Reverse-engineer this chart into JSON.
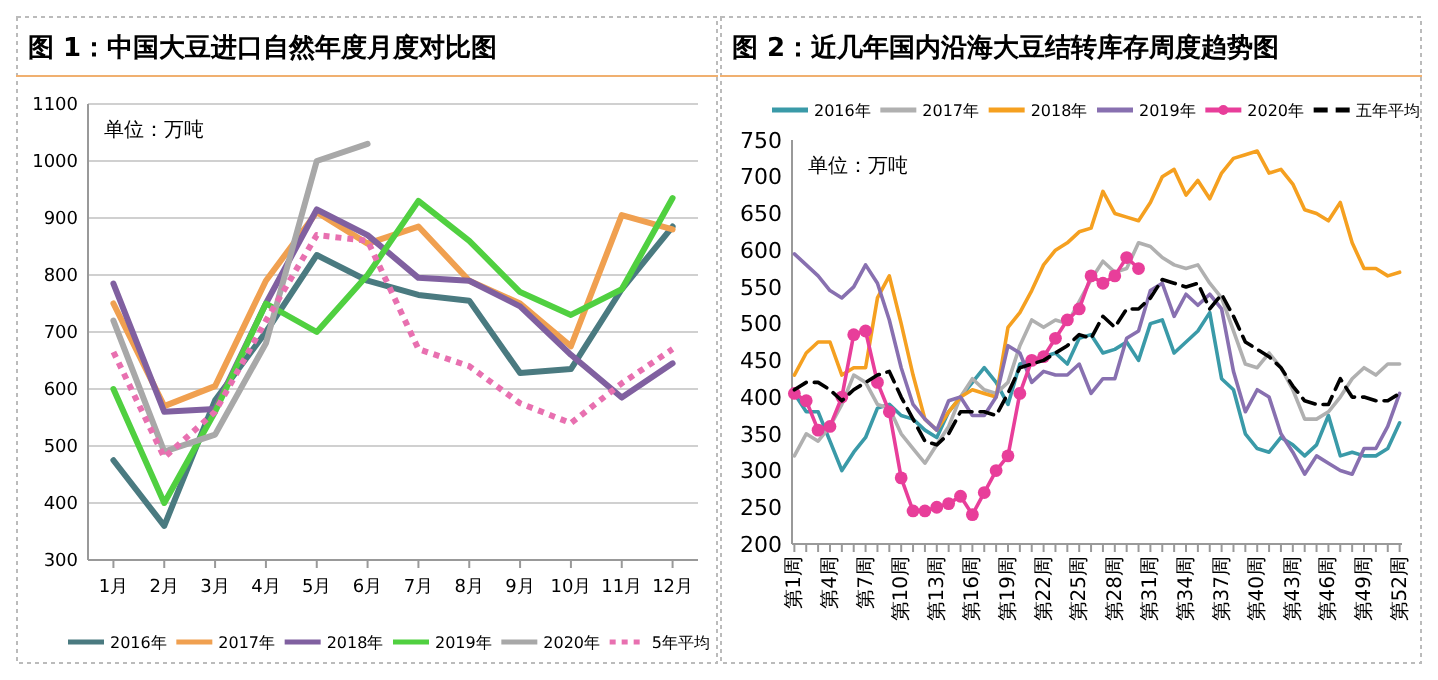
{
  "chart_data": [
    {
      "type": "line",
      "title": "图 1：中国大豆进口自然年度月度对比图",
      "categories": [
        "1月",
        "2月",
        "3月",
        "4月",
        "5月",
        "6月",
        "7月",
        "8月",
        "9月",
        "10月",
        "11月",
        "12月"
      ],
      "ylim": [
        300,
        1100
      ],
      "yticks": [
        300,
        400,
        500,
        600,
        700,
        800,
        900,
        1000,
        1100
      ],
      "grid": "y",
      "legend": "bottom",
      "marker": "none",
      "annotations": [
        "单位：万吨"
      ],
      "series": [
        {
          "name": "2016年",
          "color": "#4a7a80",
          "values": [
            475,
            360,
            580,
            700,
            835,
            790,
            765,
            755,
            628,
            635,
            775,
            885
          ]
        },
        {
          "name": "2017年",
          "color": "#f0a050",
          "values": [
            750,
            570,
            605,
            790,
            910,
            855,
            885,
            790,
            750,
            675,
            905,
            880
          ]
        },
        {
          "name": "2018年",
          "color": "#8060a0",
          "values": [
            785,
            560,
            565,
            750,
            915,
            870,
            795,
            790,
            745,
            660,
            585,
            645
          ]
        },
        {
          "name": "2019年",
          "color": "#50d040",
          "values": [
            600,
            400,
            560,
            750,
            700,
            800,
            930,
            860,
            770,
            730,
            775,
            935
          ]
        },
        {
          "name": "2020年",
          "color": "#a8a8a8",
          "values": [
            720,
            490,
            520,
            680,
            1000,
            1030,
            null,
            null,
            null,
            null,
            null,
            null
          ]
        },
        {
          "name": "5年平均",
          "color": "#e870b0",
          "line_style": "dotted",
          "values": [
            665,
            480,
            560,
            720,
            870,
            860,
            670,
            640,
            575,
            540,
            610,
            670
          ]
        }
      ]
    },
    {
      "type": "line",
      "title": "图 2：近几年国内沿海大豆结转库存周度趋势图",
      "categories": [
        "第1周",
        null,
        null,
        "第4周",
        null,
        null,
        "第7周",
        null,
        null,
        "第10周",
        null,
        null,
        "第13周",
        null,
        null,
        "第16周",
        null,
        null,
        "第19周",
        null,
        null,
        "第22周",
        null,
        null,
        "第25周",
        null,
        null,
        "第28周",
        null,
        null,
        "第31周",
        null,
        null,
        "第34周",
        null,
        null,
        "第37周",
        null,
        null,
        "第40周",
        null,
        null,
        "第43周",
        null,
        null,
        "第46周",
        null,
        null,
        "第49周",
        null,
        null,
        "第52周"
      ],
      "ylim": [
        200,
        750
      ],
      "yticks": [
        200,
        250,
        300,
        350,
        400,
        450,
        500,
        550,
        600,
        650,
        700,
        750
      ],
      "grid": false,
      "legend": "top",
      "annotations": [
        "单位：万吨"
      ],
      "series": [
        {
          "name": "2016年",
          "color": "#3a9aa8",
          "values": [
            405,
            380,
            380,
            340,
            300,
            325,
            345,
            385,
            390,
            375,
            370,
            355,
            345,
            380,
            400,
            420,
            440,
            420,
            390,
            445,
            450,
            455,
            460,
            445,
            480,
            485,
            460,
            465,
            475,
            450,
            500,
            505,
            460,
            475,
            490,
            515,
            425,
            410,
            350,
            330,
            325,
            345,
            335,
            320,
            335,
            375,
            320,
            325,
            320,
            320,
            330,
            365
          ]
        },
        {
          "name": "2017年",
          "color": "#b0b0b0",
          "values": [
            320,
            350,
            340,
            360,
            390,
            430,
            420,
            390,
            385,
            350,
            330,
            310,
            335,
            360,
            400,
            425,
            410,
            405,
            420,
            470,
            505,
            495,
            505,
            500,
            530,
            560,
            585,
            570,
            575,
            610,
            605,
            590,
            580,
            575,
            580,
            555,
            535,
            490,
            445,
            440,
            460,
            440,
            410,
            370,
            370,
            380,
            400,
            425,
            440,
            430,
            445,
            445
          ]
        },
        {
          "name": "2018年",
          "color": "#f5a020",
          "values": [
            430,
            460,
            475,
            475,
            430,
            440,
            440,
            535,
            565,
            500,
            430,
            370,
            355,
            380,
            400,
            410,
            405,
            400,
            495,
            515,
            545,
            580,
            600,
            610,
            625,
            630,
            680,
            650,
            645,
            640,
            665,
            700,
            710,
            675,
            695,
            670,
            705,
            725,
            730,
            735,
            705,
            710,
            690,
            655,
            650,
            640,
            665,
            610,
            575,
            575,
            565,
            570
          ]
        },
        {
          "name": "2019年",
          "color": "#8870b0",
          "values": [
            595,
            580,
            565,
            545,
            535,
            550,
            580,
            555,
            505,
            440,
            390,
            370,
            355,
            395,
            400,
            375,
            375,
            400,
            470,
            460,
            420,
            435,
            430,
            430,
            445,
            405,
            425,
            425,
            480,
            490,
            545,
            555,
            510,
            540,
            525,
            540,
            520,
            435,
            380,
            410,
            400,
            350,
            325,
            295,
            320,
            310,
            300,
            295,
            330,
            330,
            360,
            405
          ]
        },
        {
          "name": "2020年",
          "color": "#e83e9a",
          "marker": "circle",
          "values": [
            405,
            395,
            355,
            360,
            400,
            485,
            490,
            420,
            380,
            290,
            245,
            245,
            250,
            255,
            265,
            240,
            270,
            300,
            320,
            405,
            450,
            455,
            480,
            505,
            520,
            565,
            555,
            565,
            590,
            575,
            null,
            null,
            null,
            null,
            null,
            null,
            null,
            null,
            null,
            null,
            null,
            null,
            null,
            null,
            null,
            null,
            null,
            null,
            null,
            null,
            null,
            null
          ]
        },
        {
          "name": "五年平均",
          "color": "#000000",
          "line_style": "dashed",
          "values": [
            410,
            420,
            420,
            410,
            395,
            410,
            420,
            430,
            435,
            400,
            370,
            340,
            335,
            350,
            380,
            380,
            380,
            375,
            405,
            440,
            445,
            450,
            460,
            470,
            485,
            480,
            510,
            495,
            520,
            520,
            535,
            560,
            555,
            550,
            555,
            520,
            540,
            510,
            475,
            465,
            455,
            440,
            415,
            395,
            390,
            390,
            425,
            400,
            400,
            395,
            395,
            405
          ]
        }
      ]
    }
  ]
}
